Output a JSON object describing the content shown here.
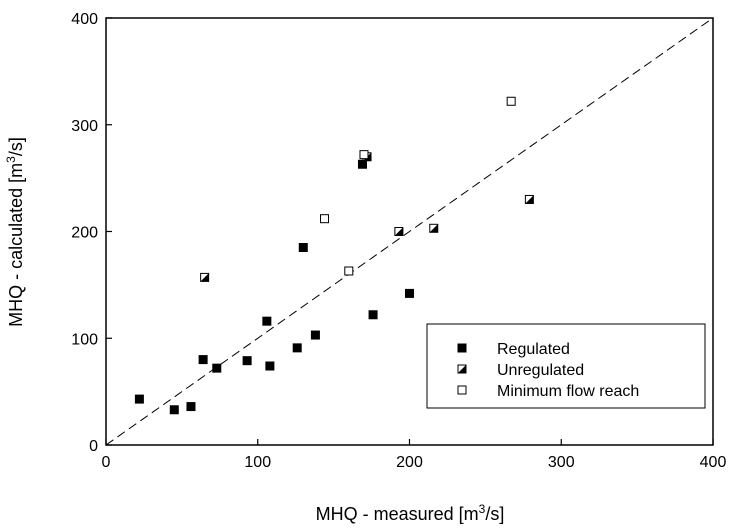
{
  "chart_data": {
    "type": "scatter",
    "xlabel": {
      "text": "MHQ - measured [m",
      "sup": "3",
      "tail": "/s]"
    },
    "ylabel": {
      "text": "MHQ - calculated [m",
      "sup": "3",
      "tail": "/s]"
    },
    "xlim": [
      0,
      400
    ],
    "ylim": [
      0,
      400
    ],
    "x_ticks": [
      "0",
      "100",
      "200",
      "300",
      "400"
    ],
    "y_ticks": [
      "0",
      "100",
      "200",
      "300",
      "400"
    ],
    "grid": false,
    "reference_line": {
      "style": "dashed",
      "from": [
        0,
        0
      ],
      "to": [
        400,
        400
      ]
    },
    "legend_position": "bottom-right",
    "series": [
      {
        "name": "Regulated",
        "marker": "filled-square",
        "points": [
          [
            22,
            43
          ],
          [
            45,
            33
          ],
          [
            56,
            36
          ],
          [
            64,
            80
          ],
          [
            73,
            72
          ],
          [
            93,
            79
          ],
          [
            106,
            116
          ],
          [
            108,
            74
          ],
          [
            126,
            91
          ],
          [
            130,
            185
          ],
          [
            138,
            103
          ],
          [
            169,
            263
          ],
          [
            176,
            122
          ],
          [
            200,
            142
          ]
        ]
      },
      {
        "name": "Unregulated",
        "marker": "half-filled-square",
        "points": [
          [
            65,
            157
          ],
          [
            172,
            270
          ],
          [
            193,
            200
          ],
          [
            216,
            203
          ],
          [
            279,
            230
          ]
        ]
      },
      {
        "name": "Minimum flow reach",
        "marker": "open-square",
        "points": [
          [
            144,
            212
          ],
          [
            160,
            163
          ],
          [
            170,
            272
          ],
          [
            267,
            322
          ]
        ]
      }
    ]
  }
}
